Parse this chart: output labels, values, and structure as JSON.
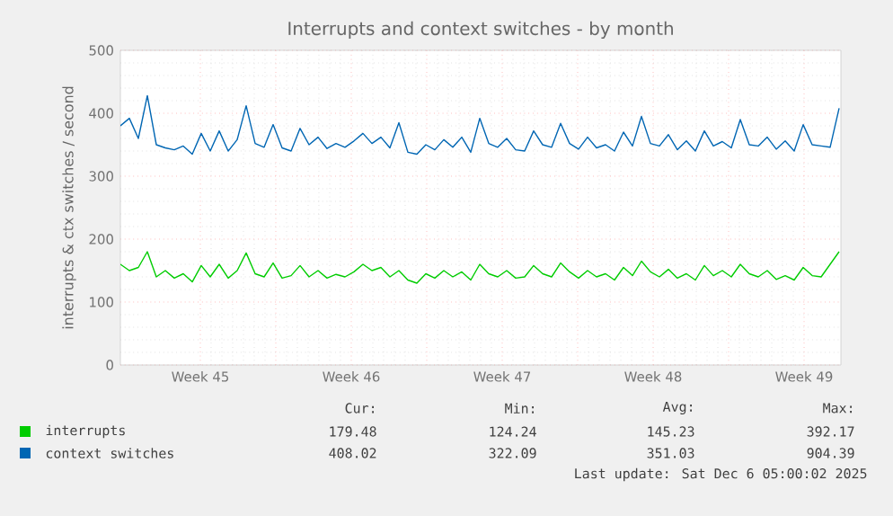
{
  "chart_data": {
    "type": "line",
    "title": "Interrupts and context switches - by month",
    "ylabel": "interrupts & ctx switches / second",
    "x": [
      "2025-11-02T19:00",
      "2025-11-03T05:00",
      "2025-11-03T15:00",
      "2025-11-04T01:00",
      "2025-11-04T11:00",
      "2025-11-04T21:00",
      "2025-11-05T07:00",
      "2025-11-05T17:00",
      "2025-11-06T03:00",
      "2025-11-06T13:00",
      "2025-11-06T23:00",
      "2025-11-07T09:00",
      "2025-11-07T19:00",
      "2025-11-08T05:00",
      "2025-11-08T15:00",
      "2025-11-09T01:00",
      "2025-11-09T11:00",
      "2025-11-09T21:00",
      "2025-11-10T07:00",
      "2025-11-10T17:00",
      "2025-11-11T03:00",
      "2025-11-11T13:00",
      "2025-11-11T23:00",
      "2025-11-12T09:00",
      "2025-11-12T19:00",
      "2025-11-13T05:00",
      "2025-11-13T15:00",
      "2025-11-14T01:00",
      "2025-11-14T11:00",
      "2025-11-14T21:00",
      "2025-11-15T07:00",
      "2025-11-15T17:00",
      "2025-11-16T03:00",
      "2025-11-16T13:00",
      "2025-11-16T23:00",
      "2025-11-17T09:00",
      "2025-11-17T19:00",
      "2025-11-18T05:00",
      "2025-11-18T15:00",
      "2025-11-19T01:00",
      "2025-11-19T11:00",
      "2025-11-19T21:00",
      "2025-11-20T07:00",
      "2025-11-20T17:00",
      "2025-11-21T03:00",
      "2025-11-21T13:00",
      "2025-11-21T23:00",
      "2025-11-22T09:00",
      "2025-11-22T19:00",
      "2025-11-23T05:00",
      "2025-11-23T15:00",
      "2025-11-24T01:00",
      "2025-11-24T11:00",
      "2025-11-24T21:00",
      "2025-11-25T07:00",
      "2025-11-25T17:00",
      "2025-11-26T03:00",
      "2025-11-26T13:00",
      "2025-11-26T23:00",
      "2025-11-27T09:00",
      "2025-11-27T19:00",
      "2025-11-28T05:00",
      "2025-11-28T15:00",
      "2025-11-29T01:00",
      "2025-11-29T11:00",
      "2025-11-29T21:00",
      "2025-11-30T07:00",
      "2025-11-30T17:00",
      "2025-12-01T03:00",
      "2025-12-01T13:00",
      "2025-12-01T23:00",
      "2025-12-02T09:00",
      "2025-12-02T19:00",
      "2025-12-03T05:00",
      "2025-12-03T15:00",
      "2025-12-04T01:00",
      "2025-12-04T11:00",
      "2025-12-04T21:00",
      "2025-12-05T07:00",
      "2025-12-05T17:00",
      "2025-12-06T03:00"
    ],
    "series": [
      {
        "name": "interrupts",
        "color": "#00cc00",
        "values": [
          160,
          150,
          155,
          180,
          140,
          150,
          138,
          145,
          132,
          158,
          140,
          160,
          138,
          150,
          178,
          145,
          140,
          162,
          138,
          142,
          158,
          140,
          150,
          138,
          144,
          140,
          148,
          160,
          150,
          155,
          140,
          150,
          135,
          130,
          145,
          138,
          150,
          140,
          148,
          135,
          160,
          145,
          140,
          150,
          138,
          140,
          158,
          145,
          140,
          162,
          148,
          138,
          150,
          140,
          145,
          135,
          155,
          142,
          165,
          148,
          140,
          152,
          138,
          145,
          135,
          158,
          142,
          150,
          140,
          160,
          145,
          140,
          150,
          136,
          142,
          135,
          155,
          142,
          140,
          160,
          180
        ]
      },
      {
        "name": "context switches",
        "color": "#0066b3",
        "values": [
          380,
          392,
          360,
          428,
          350,
          345,
          342,
          348,
          335,
          368,
          340,
          372,
          340,
          358,
          412,
          352,
          346,
          382,
          345,
          340,
          376,
          350,
          362,
          344,
          352,
          346,
          356,
          368,
          352,
          362,
          345,
          385,
          338,
          335,
          350,
          342,
          358,
          346,
          362,
          338,
          392,
          352,
          346,
          360,
          342,
          340,
          372,
          350,
          346,
          384,
          352,
          343,
          362,
          345,
          350,
          340,
          370,
          348,
          395,
          352,
          348,
          366,
          342,
          356,
          340,
          372,
          348,
          355,
          345,
          390,
          350,
          348,
          362,
          343,
          356,
          340,
          382,
          350,
          348,
          346,
          408
        ]
      }
    ],
    "xlim": [
      "2025-11-02T19:00",
      "2025-12-06T05:00"
    ],
    "xticks": [
      {
        "value": "2025-11-06T12:00",
        "label": "Week 45"
      },
      {
        "value": "2025-11-10",
        "label": null
      },
      {
        "value": "2025-11-13T12:00",
        "label": "Week 46"
      },
      {
        "value": "2025-11-17",
        "label": null
      },
      {
        "value": "2025-11-20T12:00",
        "label": "Week 47"
      },
      {
        "value": "2025-11-24",
        "label": null
      },
      {
        "value": "2025-11-27T12:00",
        "label": "Week 48"
      },
      {
        "value": "2025-12-01",
        "label": null
      },
      {
        "value": "2025-12-04T12:00",
        "label": "Week 49"
      }
    ],
    "ylim": [
      0,
      500
    ],
    "yticks": [
      0,
      100,
      200,
      300,
      400,
      500
    ],
    "grid": true,
    "legend": "bottom",
    "line_style": "solid",
    "marker": "none",
    "annotations": [
      "Cur:",
      "Min:",
      "Avg:",
      "Max:",
      "179.48",
      "124.24",
      "145.23",
      "392.17",
      "408.02",
      "322.09",
      "351.03",
      "904.39",
      "Last update: Sat Dec  6 05:00:02 2025"
    ]
  }
}
